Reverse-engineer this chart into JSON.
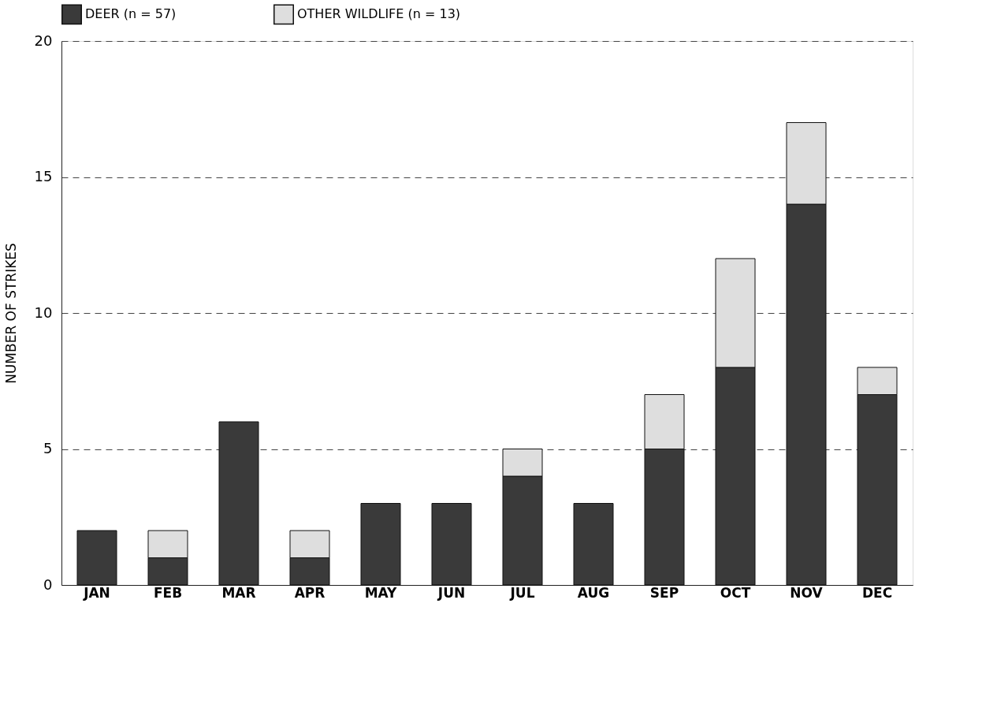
{
  "chart_data": {
    "type": "bar",
    "stacked": true,
    "ylabel": "NUMBER OF STRIKES",
    "categories": [
      "JAN",
      "FEB",
      "MAR",
      "APR",
      "MAY",
      "JUN",
      "JUL",
      "AUG",
      "SEP",
      "OCT",
      "NOV",
      "DEC"
    ],
    "series": [
      {
        "name": "DEER (n = 57)",
        "color": "#3a3a3a",
        "values": [
          2,
          1,
          6,
          1,
          3,
          3,
          4,
          3,
          5,
          8,
          14,
          7
        ]
      },
      {
        "name": "OTHER WILDLIFE (n = 13)",
        "color": "#dedede",
        "values": [
          null,
          1,
          null,
          1,
          null,
          null,
          1,
          null,
          2,
          4,
          3,
          1
        ]
      }
    ],
    "ylim": [
      0,
      20
    ],
    "yticks": [
      0,
      5,
      10,
      15,
      20
    ],
    "grid": "y",
    "legend": "top"
  }
}
